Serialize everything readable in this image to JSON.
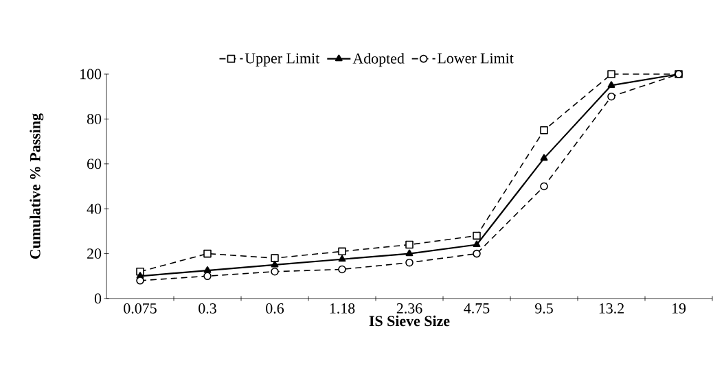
{
  "chart_data": {
    "type": "line",
    "xlabel": "IS Sieve Size",
    "ylabel": "Cumulative % Passing",
    "categories": [
      "0.075",
      "0.3",
      "0.6",
      "1.18",
      "2.36",
      "4.75",
      "9.5",
      "13.2",
      "19"
    ],
    "ylim": [
      0,
      100
    ],
    "yticks": [
      0,
      20,
      40,
      60,
      80,
      100
    ],
    "grid": false,
    "legend": "top",
    "series": [
      {
        "name": "Upper Limit",
        "color": "#000000",
        "marker": "square",
        "line_style": "dashed",
        "values": [
          12,
          20,
          18,
          21,
          24,
          28,
          75,
          100,
          100
        ]
      },
      {
        "name": "Adopted",
        "color": "#000000",
        "marker": "triangle",
        "line_style": "solid",
        "values": [
          10,
          12.5,
          15,
          17.5,
          20,
          24,
          62.5,
          95,
          100
        ]
      },
      {
        "name": "Lower Limit",
        "color": "#000000",
        "marker": "circle",
        "line_style": "dashed",
        "values": [
          8,
          10,
          12,
          13,
          16,
          20,
          50,
          90,
          100
        ]
      }
    ]
  }
}
